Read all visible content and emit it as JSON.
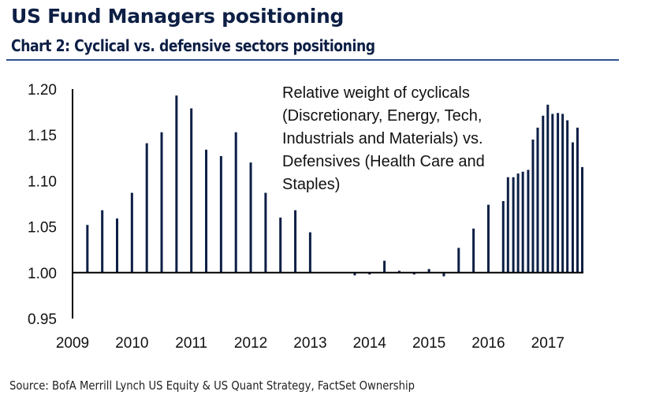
{
  "header": {
    "title": "US Fund Managers positioning",
    "subtitle": "Chart 2: Cyclical vs. defensive sectors positioning"
  },
  "footer": {
    "source": "Source: BofA Merrill Lynch US Equity & US Quant Strategy, FactSet Ownership"
  },
  "colors": {
    "bar": "#0d1f45",
    "axis": "#000000",
    "rule": "#2f4f8f"
  },
  "chart_data": {
    "type": "bar",
    "title": "Chart 2: Cyclical vs. defensive sectors positioning",
    "annotation": "Relative weight of cyclicals (Discretionary, Energy, Tech, Industrials and Materials) vs. Defensives (Health Care and Staples)",
    "xlabel": "",
    "ylabel": "",
    "ylim": [
      0.95,
      1.2
    ],
    "baseline": 1.0,
    "yticks": [
      "1.20",
      "1.15",
      "1.10",
      "1.05",
      "1.00",
      "0.95"
    ],
    "ytick_values": [
      1.2,
      1.15,
      1.1,
      1.05,
      1.0,
      0.95
    ],
    "xticks": [
      "2009",
      "2010",
      "2011",
      "2012",
      "2013",
      "2014",
      "2015",
      "2016",
      "2017"
    ],
    "xtick_values": [
      2009,
      2010,
      2011,
      2012,
      2013,
      2014,
      2015,
      2016,
      2017
    ],
    "xlim": [
      2009,
      2017.6
    ],
    "grid": false,
    "legend": "none",
    "x": [
      2009.25,
      2009.5,
      2009.75,
      2010.0,
      2010.25,
      2010.5,
      2010.75,
      2011.0,
      2011.25,
      2011.5,
      2011.75,
      2012.0,
      2012.25,
      2012.5,
      2012.75,
      2013.0,
      2013.25,
      2013.5,
      2013.75,
      2014.0,
      2014.25,
      2014.5,
      2014.75,
      2015.0,
      2015.25,
      2015.5,
      2015.75,
      2016.0,
      2016.25,
      2016.33,
      2016.42,
      2016.5,
      2016.58,
      2016.67,
      2016.75,
      2016.83,
      2016.92,
      2017.0,
      2017.08,
      2017.17,
      2017.25,
      2017.33,
      2017.42,
      2017.5,
      2017.58
    ],
    "values": [
      1.052,
      1.068,
      1.059,
      1.087,
      1.141,
      1.153,
      1.193,
      1.179,
      1.134,
      1.127,
      1.153,
      1.12,
      1.087,
      1.06,
      1.068,
      1.044,
      1.0,
      1.0,
      0.997,
      0.998,
      1.013,
      1.002,
      0.998,
      1.004,
      0.996,
      1.027,
      1.048,
      1.074,
      1.078,
      1.104,
      1.104,
      1.108,
      1.11,
      1.112,
      1.145,
      1.158,
      1.171,
      1.183,
      1.173,
      1.174,
      1.173,
      1.166,
      1.142,
      1.158,
      1.115
    ]
  }
}
